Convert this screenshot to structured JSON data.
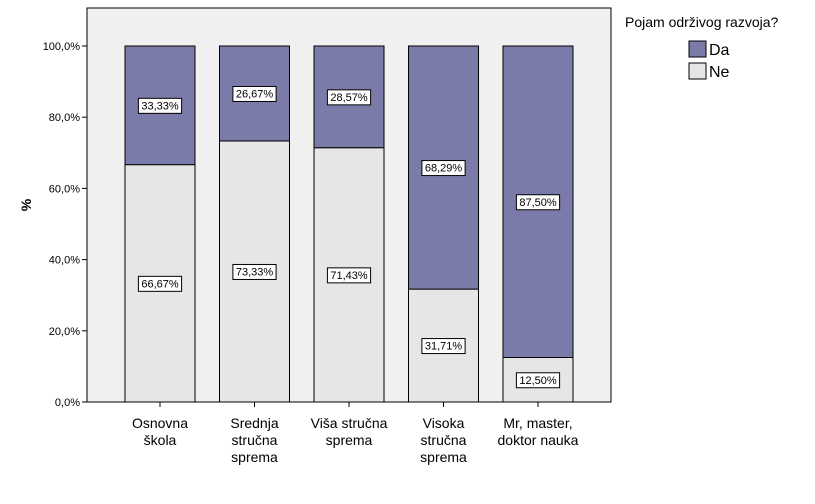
{
  "chart_data": {
    "type": "bar",
    "stacked": true,
    "categories": [
      [
        "Osnovna",
        "škola"
      ],
      [
        "Srednja",
        "stručna",
        "sprema"
      ],
      [
        "Viša stručna",
        "sprema"
      ],
      [
        "Visoka",
        "stručna",
        "sprema"
      ],
      [
        "Mr, master,",
        "doktor nauka"
      ]
    ],
    "series": [
      {
        "name": "Ne",
        "color": "#e6e6e6",
        "values": [
          66.67,
          73.33,
          71.43,
          31.71,
          12.5
        ],
        "labels": [
          "66,67%",
          "73,33%",
          "71,43%",
          "31,71%",
          "12,50%"
        ]
      },
      {
        "name": "Da",
        "color": "#7b7ba9",
        "values": [
          33.33,
          26.67,
          28.57,
          68.29,
          87.5
        ],
        "labels": [
          "33,33%",
          "26,67%",
          "28,57%",
          "68,29%",
          "87,50%"
        ]
      }
    ],
    "ylabel": "%",
    "ylim": [
      0,
      100
    ],
    "yticks": [
      0,
      20,
      40,
      60,
      80,
      100
    ],
    "ytick_labels": [
      "0,0%",
      "20,0%",
      "40,0%",
      "60,0%",
      "80,0%",
      "100,0%"
    ],
    "legend_title": "Pojam održivog razvoja?",
    "legend": [
      {
        "name": "Da",
        "color": "#7b7ba9"
      },
      {
        "name": "Ne",
        "color": "#e6e6e6"
      }
    ],
    "legend_position": "top-right",
    "background": "#f0f0f0",
    "grid": false
  }
}
